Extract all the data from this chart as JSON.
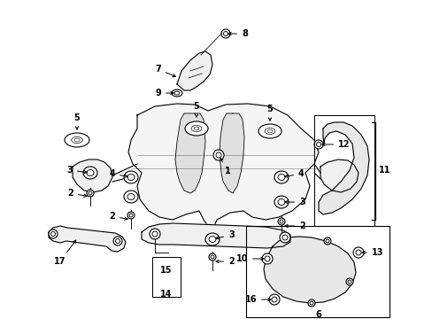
{
  "bg_color": "#ffffff",
  "line_color": "#000000",
  "fig_width": 4.89,
  "fig_height": 3.6,
  "dpi": 100,
  "xlim": [
    0,
    489
  ],
  "ylim": [
    0,
    360
  ]
}
